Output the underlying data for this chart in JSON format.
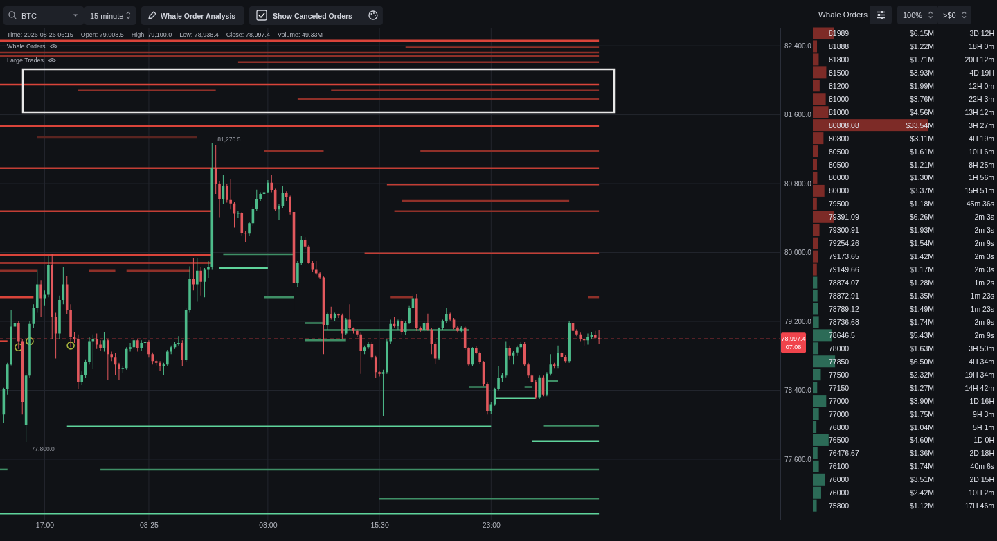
{
  "chart_data": [
    {
      "type": "candlestick",
      "x": [
        "2026-08-24T14:15",
        "2026-08-24T14:30",
        "2026-08-24T14:45",
        "2026-08-24T15:00",
        "2026-08-24T15:15",
        "2026-08-24T15:30",
        "2026-08-24T15:45",
        "2026-08-24T16:00",
        "2026-08-24T16:15",
        "2026-08-24T16:30",
        "2026-08-24T16:45",
        "2026-08-24T17:00",
        "2026-08-24T17:15",
        "2026-08-24T17:30",
        "2026-08-24T17:45",
        "2026-08-24T18:00",
        "2026-08-24T18:15",
        "2026-08-24T18:30",
        "2026-08-24T18:45",
        "2026-08-24T19:00",
        "2026-08-24T19:15",
        "2026-08-24T19:30",
        "2026-08-24T19:45",
        "2026-08-24T20:00",
        "2026-08-24T20:15",
        "2026-08-24T20:30",
        "2026-08-24T20:45",
        "2026-08-24T21:00",
        "2026-08-24T21:15",
        "2026-08-24T21:30",
        "2026-08-24T21:45",
        "2026-08-24T22:00",
        "2026-08-24T22:15",
        "2026-08-24T22:30",
        "2026-08-24T22:45",
        "2026-08-24T23:00",
        "2026-08-24T23:15",
        "2026-08-24T23:30",
        "2026-08-24T23:45",
        "2026-08-25T00:00",
        "2026-08-25T00:15",
        "2026-08-25T00:30",
        "2026-08-25T00:45",
        "2026-08-25T01:00",
        "2026-08-25T01:15",
        "2026-08-25T01:30",
        "2026-08-25T01:45",
        "2026-08-25T02:00",
        "2026-08-25T02:15",
        "2026-08-25T02:30",
        "2026-08-25T02:45",
        "2026-08-25T03:00",
        "2026-08-25T03:15",
        "2026-08-25T03:30",
        "2026-08-25T03:45",
        "2026-08-25T04:00",
        "2026-08-25T04:15",
        "2026-08-25T04:30",
        "2026-08-25T04:45",
        "2026-08-25T05:00",
        "2026-08-25T05:15",
        "2026-08-25T05:30",
        "2026-08-25T05:45",
        "2026-08-25T06:00",
        "2026-08-25T06:15",
        "2026-08-25T06:30",
        "2026-08-25T06:45",
        "2026-08-25T07:00",
        "2026-08-25T07:15",
        "2026-08-25T07:30",
        "2026-08-25T07:45",
        "2026-08-25T08:00",
        "2026-08-25T08:15",
        "2026-08-25T08:30",
        "2026-08-25T08:45",
        "2026-08-25T09:00",
        "2026-08-25T09:15",
        "2026-08-25T09:30",
        "2026-08-25T09:45",
        "2026-08-25T10:00",
        "2026-08-25T10:15",
        "2026-08-25T10:30",
        "2026-08-25T10:45",
        "2026-08-25T11:00",
        "2026-08-25T11:15",
        "2026-08-25T11:30",
        "2026-08-25T11:45",
        "2026-08-25T12:00",
        "2026-08-25T12:15",
        "2026-08-25T12:30",
        "2026-08-25T12:45",
        "2026-08-25T13:00",
        "2026-08-25T13:15",
        "2026-08-25T13:30",
        "2026-08-25T13:45",
        "2026-08-25T14:00",
        "2026-08-25T14:15",
        "2026-08-25T14:30",
        "2026-08-25T14:45",
        "2026-08-25T15:00",
        "2026-08-25T15:15",
        "2026-08-25T15:30",
        "2026-08-25T15:45",
        "2026-08-25T16:00",
        "2026-08-25T16:15",
        "2026-08-25T16:30",
        "2026-08-25T16:45",
        "2026-08-25T17:00",
        "2026-08-25T17:15",
        "2026-08-25T17:30",
        "2026-08-25T17:45",
        "2026-08-25T18:00",
        "2026-08-25T18:15",
        "2026-08-25T18:30",
        "2026-08-25T18:45",
        "2026-08-25T19:00",
        "2026-08-25T19:15",
        "2026-08-25T19:30",
        "2026-08-25T19:45",
        "2026-08-25T20:00",
        "2026-08-25T20:15",
        "2026-08-25T20:30",
        "2026-08-25T20:45",
        "2026-08-25T21:00",
        "2026-08-25T21:15",
        "2026-08-25T21:30",
        "2026-08-25T21:45",
        "2026-08-25T22:00",
        "2026-08-25T22:15",
        "2026-08-25T22:30",
        "2026-08-25T22:45",
        "2026-08-25T23:00",
        "2026-08-25T23:15",
        "2026-08-25T23:30",
        "2026-08-25T23:45",
        "2026-08-26T00:00",
        "2026-08-26T00:15",
        "2026-08-26T00:30",
        "2026-08-26T00:45",
        "2026-08-26T01:00",
        "2026-08-26T01:15",
        "2026-08-26T01:30",
        "2026-08-26T01:45",
        "2026-08-26T02:00",
        "2026-08-26T02:15",
        "2026-08-26T02:30",
        "2026-08-26T02:45",
        "2026-08-26T03:00",
        "2026-08-26T03:15",
        "2026-08-26T03:30",
        "2026-08-26T03:45",
        "2026-08-26T04:00",
        "2026-08-26T04:15",
        "2026-08-26T04:30",
        "2026-08-26T04:45",
        "2026-08-26T05:00",
        "2026-08-26T05:15",
        "2026-08-26T05:30",
        "2026-08-26T05:45",
        "2026-08-26T06:00",
        "2026-08-26T06:15"
      ],
      "ohlc": [
        [
          78120,
          78430,
          78020,
          78420
        ],
        [
          78420,
          78720,
          78350,
          78700
        ],
        [
          78700,
          79330,
          78690,
          79140
        ],
        [
          79140,
          79420,
          79100,
          79180
        ],
        [
          79180,
          79200,
          78880,
          78970
        ],
        [
          78970,
          78990,
          78120,
          78260
        ],
        [
          78000,
          78600,
          77800,
          78570
        ],
        [
          78570,
          79200,
          78540,
          79170
        ],
        [
          79170,
          79400,
          79120,
          79360
        ],
        [
          79360,
          79800,
          79300,
          79630
        ],
        [
          79630,
          79680,
          79250,
          79470
        ],
        [
          79470,
          79560,
          79380,
          79510
        ],
        [
          79510,
          79960,
          79480,
          79860
        ],
        [
          79860,
          79980,
          79000,
          79250
        ],
        [
          79250,
          79300,
          78770,
          79060
        ],
        [
          79060,
          79500,
          79000,
          79450
        ],
        [
          79450,
          79830,
          79400,
          79630
        ],
        [
          79630,
          79730,
          79280,
          79330
        ],
        [
          79330,
          79400,
          78900,
          79020
        ],
        [
          79020,
          79080,
          78950,
          78990
        ],
        [
          78990,
          79050,
          78420,
          78500
        ],
        [
          78500,
          78620,
          78460,
          78580
        ],
        [
          78580,
          78760,
          78540,
          78730
        ],
        [
          78730,
          79020,
          78700,
          78970
        ],
        [
          78970,
          79050,
          78650,
          78990
        ],
        [
          78990,
          79060,
          78880,
          78930
        ],
        [
          78930,
          78980,
          78860,
          78890
        ],
        [
          78890,
          79080,
          78850,
          78980
        ],
        [
          78980,
          79000,
          78520,
          78820
        ],
        [
          78820,
          78850,
          78740,
          78780
        ],
        [
          78780,
          78830,
          78580,
          78700
        ],
        [
          78700,
          78720,
          78520,
          78650
        ],
        [
          78650,
          78680,
          78600,
          78660
        ],
        [
          78660,
          78900,
          78640,
          78880
        ],
        [
          78880,
          78950,
          78850,
          78900
        ],
        [
          78900,
          79000,
          78880,
          78980
        ],
        [
          78980,
          79000,
          78850,
          78890
        ],
        [
          78890,
          78980,
          78860,
          78950
        ],
        [
          78950,
          79000,
          78900,
          78960
        ],
        [
          78960,
          78980,
          78780,
          78820
        ],
        [
          78820,
          78840,
          78700,
          78740
        ],
        [
          78740,
          78760,
          78690,
          78720
        ],
        [
          78720,
          78740,
          78630,
          78680
        ],
        [
          78680,
          78720,
          78580,
          78700
        ],
        [
          78700,
          78870,
          78680,
          78850
        ],
        [
          78850,
          78920,
          78820,
          78900
        ],
        [
          78900,
          78960,
          78880,
          78940
        ],
        [
          78940,
          79030,
          78920,
          78950
        ],
        [
          78950,
          78980,
          78680,
          78750
        ],
        [
          78750,
          79350,
          78730,
          79330
        ],
        [
          79330,
          79840,
          79300,
          79690
        ],
        [
          79690,
          79940,
          79560,
          79630
        ],
        [
          79630,
          79940,
          79430,
          79790
        ],
        [
          79790,
          79830,
          79500,
          79660
        ],
        [
          79660,
          79820,
          79480,
          79800
        ],
        [
          79800,
          79900,
          79700,
          79830
        ],
        [
          79830,
          81270.5,
          79800,
          80980
        ],
        [
          80980,
          81250,
          80680,
          80800
        ],
        [
          80800,
          80830,
          80410,
          80620
        ],
        [
          80620,
          80900,
          80560,
          80770
        ],
        [
          80770,
          80800,
          80580,
          80610
        ],
        [
          80610,
          80850,
          80500,
          80570
        ],
        [
          80570,
          80590,
          80290,
          80450
        ],
        [
          80450,
          80480,
          80400,
          80460
        ],
        [
          80460,
          80470,
          80200,
          80230
        ],
        [
          80230,
          80250,
          80120,
          80220
        ],
        [
          80220,
          80350,
          80190,
          80340
        ],
        [
          80340,
          80530,
          80310,
          80510
        ],
        [
          80510,
          80730,
          80480,
          80620
        ],
        [
          80620,
          80700,
          80600,
          80680
        ],
        [
          80680,
          80780,
          80650,
          80700
        ],
        [
          80700,
          80840,
          80690,
          80810
        ],
        [
          80810,
          80900,
          80700,
          80720
        ],
        [
          80720,
          80740,
          80480,
          80500
        ],
        [
          80500,
          80560,
          80380,
          80540
        ],
        [
          80540,
          80770,
          80520,
          80690
        ],
        [
          80690,
          80710,
          80600,
          80640
        ],
        [
          80640,
          80660,
          80440,
          80470
        ],
        [
          80470,
          80500,
          79290,
          79650
        ],
        [
          79650,
          79900,
          79600,
          79880
        ],
        [
          79880,
          80190,
          79860,
          80150
        ],
        [
          80150,
          80180,
          80040,
          80070
        ],
        [
          80070,
          80090,
          79870,
          79880
        ],
        [
          79880,
          79900,
          79780,
          79800
        ],
        [
          79800,
          79900,
          79740,
          79760
        ],
        [
          79760,
          79780,
          79690,
          79710
        ],
        [
          79710,
          79720,
          78820,
          79160
        ],
        [
          79160,
          79300,
          79100,
          79280
        ],
        [
          79280,
          79370,
          79220,
          79240
        ],
        [
          79240,
          79300,
          79200,
          79280
        ],
        [
          79280,
          79290,
          79240,
          79270
        ],
        [
          79270,
          79290,
          79000,
          79060
        ],
        [
          79060,
          79240,
          79040,
          79220
        ],
        [
          79220,
          79400,
          79100,
          79120
        ],
        [
          79120,
          79130,
          79060,
          79090
        ],
        [
          79090,
          79110,
          79020,
          79050
        ],
        [
          79050,
          79070,
          78590,
          78860
        ],
        [
          78860,
          78920,
          78820,
          78900
        ],
        [
          78900,
          78960,
          78880,
          78940
        ],
        [
          78940,
          78960,
          78760,
          78780
        ],
        [
          78780,
          78800,
          78540,
          78610
        ],
        [
          78610,
          78620,
          78560,
          78590
        ],
        [
          78590,
          78640,
          78100,
          78610
        ],
        [
          78610,
          78990,
          78590,
          78970
        ],
        [
          78970,
          79220,
          78940,
          79170
        ],
        [
          79170,
          79250,
          79130,
          79150
        ],
        [
          79150,
          79220,
          79100,
          79200
        ],
        [
          79200,
          79230,
          79050,
          79080
        ],
        [
          79080,
          79200,
          79040,
          79180
        ],
        [
          79180,
          79380,
          79170,
          79360
        ],
        [
          79360,
          79520,
          79340,
          79470
        ],
        [
          79470,
          79520,
          79090,
          79120
        ],
        [
          79120,
          79140,
          79080,
          79100
        ],
        [
          79100,
          79200,
          79080,
          79180
        ],
        [
          79180,
          79290,
          79090,
          79100
        ],
        [
          79100,
          79120,
          78820,
          78940
        ],
        [
          78940,
          78960,
          78710,
          78770
        ],
        [
          78770,
          79130,
          78750,
          79120
        ],
        [
          79120,
          79220,
          79100,
          79200
        ],
        [
          79200,
          79360,
          79180,
          79280
        ],
        [
          79280,
          79300,
          79200,
          79220
        ],
        [
          79220,
          79240,
          79110,
          79130
        ],
        [
          79130,
          79150,
          79070,
          79090
        ],
        [
          79090,
          79150,
          79070,
          79130
        ],
        [
          79130,
          79150,
          78870,
          78890
        ],
        [
          78890,
          78900,
          78680,
          78700
        ],
        [
          78700,
          78900,
          78680,
          78890
        ],
        [
          78890,
          78910,
          78820,
          78830
        ],
        [
          78830,
          78850,
          78710,
          78730
        ],
        [
          78730,
          78740,
          78450,
          78470
        ],
        [
          78470,
          78490,
          78120,
          78160
        ],
        [
          78160,
          78260,
          78130,
          78240
        ],
        [
          78240,
          78430,
          78220,
          78420
        ],
        [
          78420,
          78680,
          78400,
          78540
        ],
        [
          78540,
          78600,
          78500,
          78570
        ],
        [
          78570,
          78970,
          78550,
          78890
        ],
        [
          78890,
          78920,
          78760,
          78800
        ],
        [
          78800,
          78860,
          78700,
          78840
        ],
        [
          78840,
          78920,
          78800,
          78900
        ],
        [
          78900,
          78960,
          78880,
          78940
        ],
        [
          78940,
          78960,
          78680,
          78700
        ],
        [
          78700,
          78720,
          78540,
          78570
        ],
        [
          78570,
          78590,
          78480,
          78500
        ],
        [
          78500,
          78520,
          78300,
          78320
        ],
        [
          78320,
          78570,
          78300,
          78550
        ],
        [
          78550,
          78570,
          78330,
          78350
        ],
        [
          78350,
          78610,
          78330,
          78590
        ],
        [
          78590,
          78820,
          78570,
          78700
        ],
        [
          78700,
          78720,
          78660,
          78680
        ],
        [
          78680,
          78920,
          78660,
          78830
        ],
        [
          78830,
          78850,
          78770,
          78790
        ],
        [
          78790,
          78810,
          78720,
          78740
        ],
        [
          78740,
          79200,
          78720,
          79180
        ],
        [
          79180,
          79200,
          79070,
          79090
        ],
        [
          79090,
          79110,
          79030,
          79050
        ],
        [
          79050,
          79070,
          78970,
          79000
        ],
        [
          79000,
          79010,
          78920,
          78980
        ],
        [
          78980,
          79060,
          78930,
          79020
        ],
        [
          79020,
          79080,
          79000,
          79040
        ],
        [
          79040,
          79090,
          78990,
          79008.5
        ],
        [
          79008.5,
          79100,
          78938.4,
          78997.4
        ]
      ],
      "colors": [
        "#4dbb8a",
        "#4dbb8a",
        "#4dbb8a",
        "#4dbb8a",
        "#e2585d",
        "#e2585d",
        "#4dbb8a",
        "#4dbb8a",
        "#4dbb8a",
        "#4dbb8a",
        "#e2585d",
        "#4dbb8a",
        "#4dbb8a",
        "#e2585d",
        "#e2585d",
        "#4dbb8a",
        "#4dbb8a",
        "#e2585d",
        "#e2585d",
        "#e2585d",
        "#e2585d",
        "#4dbb8a",
        "#4dbb8a",
        "#4dbb8a",
        "#4dbb8a",
        "#e2585d",
        "#e2585d",
        "#4dbb8a",
        "#e2585d",
        "#e2585d",
        "#e2585d",
        "#e2585d",
        "#4dbb8a",
        "#4dbb8a",
        "#4dbb8a",
        "#4dbb8a",
        "#e2585d",
        "#4dbb8a",
        "#4dbb8a",
        "#e2585d",
        "#e2585d",
        "#e2585d",
        "#e2585d",
        "#4dbb8a",
        "#4dbb8a",
        "#4dbb8a",
        "#4dbb8a",
        "#4dbb8a",
        "#e2585d",
        "#4dbb8a",
        "#4dbb8a",
        "#e2585d",
        "#4dbb8a",
        "#e2585d",
        "#4dbb8a",
        "#4dbb8a",
        "#4dbb8a",
        "#e2585d",
        "#e2585d",
        "#4dbb8a",
        "#e2585d",
        "#e2585d",
        "#e2585d",
        "#4dbb8a",
        "#e2585d",
        "#e2585d",
        "#4dbb8a",
        "#4dbb8a",
        "#4dbb8a",
        "#4dbb8a",
        "#4dbb8a",
        "#4dbb8a",
        "#e2585d",
        "#e2585d",
        "#4dbb8a",
        "#4dbb8a",
        "#e2585d",
        "#e2585d",
        "#e2585d",
        "#4dbb8a",
        "#4dbb8a",
        "#e2585d",
        "#e2585d",
        "#e2585d",
        "#e2585d",
        "#e2585d",
        "#e2585d",
        "#4dbb8a",
        "#e2585d",
        "#4dbb8a",
        "#e2585d",
        "#e2585d",
        "#4dbb8a",
        "#e2585d",
        "#e2585d",
        "#e2585d",
        "#e2585d",
        "#4dbb8a",
        "#4dbb8a",
        "#e2585d",
        "#e2585d",
        "#e2585d",
        "#4dbb8a",
        "#4dbb8a",
        "#4dbb8a",
        "#e2585d",
        "#4dbb8a",
        "#e2585d",
        "#4dbb8a",
        "#4dbb8a",
        "#4dbb8a",
        "#e2585d",
        "#e2585d",
        "#4dbb8a",
        "#e2585d",
        "#e2585d",
        "#e2585d",
        "#4dbb8a",
        "#4dbb8a",
        "#4dbb8a",
        "#e2585d",
        "#e2585d",
        "#e2585d",
        "#4dbb8a",
        "#e2585d",
        "#e2585d",
        "#4dbb8a",
        "#e2585d",
        "#e2585d",
        "#e2585d",
        "#e2585d",
        "#4dbb8a",
        "#4dbb8a",
        "#4dbb8a",
        "#4dbb8a",
        "#4dbb8a",
        "#e2585d",
        "#4dbb8a",
        "#4dbb8a",
        "#4dbb8a",
        "#e2585d",
        "#e2585d",
        "#e2585d",
        "#e2585d",
        "#4dbb8a",
        "#e2585d",
        "#4dbb8a",
        "#4dbb8a",
        "#e2585d",
        "#4dbb8a",
        "#e2585d",
        "#e2585d",
        "#4dbb8a",
        "#e2585d",
        "#e2585d",
        "#e2585d",
        "#e2585d",
        "#4dbb8a",
        "#4dbb8a",
        "#e2585d",
        "#e2585d"
      ],
      "xlim": [
        "2026-08-24T14:00",
        "2026-08-26T18:26"
      ],
      "ylim": [
        76900,
        82610
      ],
      "xticks": [
        {
          "value": "2026-08-24T17:00",
          "label": "17:00"
        },
        {
          "value": "2026-08-25T00:00",
          "label": "08-25"
        },
        {
          "value": "2026-08-25T08:00",
          "label": "08:00"
        },
        {
          "value": "2026-08-25T15:30",
          "label": "15:30"
        },
        {
          "value": "2026-08-25T23:00",
          "label": "23:00"
        }
      ],
      "yticks": [
        {
          "value": 77600,
          "label": "77,600.0"
        },
        {
          "value": 78400,
          "label": "78,400.0"
        },
        {
          "value": 79200,
          "label": "79,200.0"
        },
        {
          "value": 80000,
          "label": "80,000.0"
        },
        {
          "value": 80800,
          "label": "80,800.0"
        },
        {
          "value": 81600,
          "label": "81,600.0"
        },
        {
          "value": 82400,
          "label": "82,400.0"
        }
      ],
      "grid": true,
      "series": [
        {
          "type": "line",
          "x": [
            "2026-08-24T14:00",
            "2026-08-26T06:15"
          ],
          "values": [
            82460,
            82460
          ],
          "color": "#d9443a"
        },
        {
          "type": "line",
          "x": [
            "2026-08-25T17:15",
            "2026-08-26T06:15"
          ],
          "values": [
            82380,
            82380
          ],
          "color": "#8f3029"
        },
        {
          "type": "line",
          "x": [
            "2026-08-24T14:00",
            "2026-08-26T06:15"
          ],
          "values": [
            82320,
            82320
          ],
          "color": "#8f3029"
        },
        {
          "type": "line",
          "x": [
            "2026-08-24T14:00",
            "2026-08-26T06:15"
          ],
          "values": [
            82280,
            82280
          ],
          "color": "#8f3029"
        },
        {
          "type": "line",
          "x": [
            "2026-08-25T06:00",
            "2026-08-26T06:15"
          ],
          "values": [
            82210,
            82210
          ],
          "color": "#8f3029"
        },
        {
          "type": "line",
          "x": [
            "2026-08-24T14:00",
            "2026-08-26T06:15"
          ],
          "values": [
            81950,
            81950
          ],
          "color": "#d9443a"
        },
        {
          "type": "line",
          "x": [
            "2026-08-24T19:15",
            "2026-08-25T04:30"
          ],
          "values": [
            81880,
            81880
          ],
          "color": "#8f3029"
        },
        {
          "type": "line",
          "x": [
            "2026-08-25T12:15",
            "2026-08-26T06:15"
          ],
          "values": [
            81880,
            81880
          ],
          "color": "#8f3029"
        },
        {
          "type": "line",
          "x": [
            "2026-08-25T10:00",
            "2026-08-26T06:15"
          ],
          "values": [
            81780,
            81780
          ],
          "color": "#8f3029"
        },
        {
          "type": "line",
          "x": [
            "2026-08-24T14:00",
            "2026-08-26T06:15"
          ],
          "values": [
            81470,
            81470
          ],
          "color": "#d9443a"
        },
        {
          "type": "line",
          "x": [
            "2026-08-24T16:30",
            "2026-08-25T03:15"
          ],
          "values": [
            81340,
            81340
          ],
          "color": "#5a2420"
        },
        {
          "type": "line",
          "x": [
            "2026-08-25T07:45",
            "2026-08-25T11:45"
          ],
          "values": [
            81180,
            81180
          ],
          "color": "#8f3029"
        },
        {
          "type": "line",
          "x": [
            "2026-08-25T18:15",
            "2026-08-26T06:15"
          ],
          "values": [
            81180,
            81180
          ],
          "color": "#8f3029"
        },
        {
          "type": "line",
          "x": [
            "2026-08-24T14:00",
            "2026-08-26T06:15"
          ],
          "values": [
            80980,
            80980
          ],
          "color": "#c23e35"
        },
        {
          "type": "line",
          "x": [
            "2026-08-25T16:00",
            "2026-08-26T06:15"
          ],
          "values": [
            80790,
            80790
          ],
          "color": "#c23e35"
        },
        {
          "type": "line",
          "x": [
            "2026-08-25T17:00",
            "2026-08-26T04:15"
          ],
          "values": [
            80600,
            80600
          ],
          "color": "#8f3029"
        },
        {
          "type": "line",
          "x": [
            "2026-08-24T14:00",
            "2026-08-25T04:15"
          ],
          "values": [
            80480,
            80480
          ],
          "color": "#c23e35"
        },
        {
          "type": "line",
          "x": [
            "2026-08-25T16:30",
            "2026-08-26T06:15"
          ],
          "values": [
            80480,
            80480
          ],
          "color": "#8f3029"
        },
        {
          "type": "line",
          "x": [
            "2026-08-25T14:30",
            "2026-08-26T06:15"
          ],
          "values": [
            79990,
            79990
          ],
          "color": "#c23e35"
        },
        {
          "type": "line",
          "x": [
            "2026-08-24T14:00",
            "2026-08-25T04:15"
          ],
          "values": [
            79970,
            79970
          ],
          "color": "#d9443a"
        },
        {
          "type": "line",
          "x": [
            "2026-08-24T14:00",
            "2026-08-25T04:15"
          ],
          "values": [
            79880,
            79880
          ],
          "color": "#c23e35"
        },
        {
          "type": "line",
          "x": [
            "2026-08-24T14:00",
            "2026-08-24T16:30"
          ],
          "values": [
            79790,
            79790
          ],
          "color": "#8f3029"
        },
        {
          "type": "line",
          "x": [
            "2026-08-24T20:00",
            "2026-08-24T21:45"
          ],
          "values": [
            79790,
            79790
          ],
          "color": "#8f3029"
        },
        {
          "type": "line",
          "x": [
            "2026-08-24T22:30",
            "2026-08-25T02:45"
          ],
          "values": [
            79790,
            79790
          ],
          "color": "#8f3029"
        },
        {
          "type": "line",
          "x": [
            "2026-08-24T14:00",
            "2026-08-24T16:15"
          ],
          "values": [
            79480,
            79480
          ],
          "color": "#d9443a"
        },
        {
          "type": "line",
          "x": [
            "2026-08-25T16:15",
            "2026-08-25T17:45"
          ],
          "values": [
            79480,
            79480
          ],
          "color": "#8f3029"
        },
        {
          "type": "line",
          "x": [
            "2026-08-26T05:30",
            "2026-08-26T06:15"
          ],
          "values": [
            79480,
            79480
          ],
          "color": "#8f3029"
        },
        {
          "type": "line",
          "x": [
            "2026-08-24T14:00",
            "2026-08-24T14:30"
          ],
          "values": [
            78970,
            78970
          ],
          "color": "#d9443a"
        },
        {
          "type": "line",
          "x": [
            "2026-08-25T05:00",
            "2026-08-25T09:45"
          ],
          "values": [
            79980,
            79980
          ],
          "color": "#3f8f66"
        },
        {
          "type": "line",
          "x": [
            "2026-08-25T04:45",
            "2026-08-25T08:00"
          ],
          "values": [
            79820,
            79820
          ],
          "color": "#5fd39b"
        },
        {
          "type": "line",
          "x": [
            "2026-08-25T07:45",
            "2026-08-25T09:45"
          ],
          "values": [
            79480,
            79480
          ],
          "color": "#3f8f66"
        },
        {
          "type": "line",
          "x": [
            "2026-08-25T10:30",
            "2026-08-25T11:45"
          ],
          "values": [
            79180,
            79180
          ],
          "color": "#3f8f66"
        },
        {
          "type": "line",
          "x": [
            "2026-08-25T10:30",
            "2026-08-25T13:15"
          ],
          "values": [
            78980,
            78980
          ],
          "color": "#3f8f66"
        },
        {
          "type": "line",
          "x": [
            "2026-08-25T11:45",
            "2026-08-25T21:30"
          ],
          "values": [
            79100,
            79100
          ],
          "color": "#3f8f66"
        },
        {
          "type": "line",
          "x": [
            "2026-08-25T21:30",
            "2026-08-25T22:45"
          ],
          "values": [
            78440,
            78440
          ],
          "color": "#3f8f66"
        },
        {
          "type": "line",
          "x": [
            "2026-08-26T01:15",
            "2026-08-26T01:45"
          ],
          "values": [
            78440,
            78440
          ],
          "color": "#3f8f66"
        },
        {
          "type": "line",
          "x": [
            "2026-08-26T02:45",
            "2026-08-26T03:30"
          ],
          "values": [
            78510,
            78510
          ],
          "color": "#3f8f66"
        },
        {
          "type": "line",
          "x": [
            "2026-08-25T23:15",
            "2026-08-26T02:00"
          ],
          "values": [
            78310,
            78310
          ],
          "color": "#5fd39b"
        },
        {
          "type": "line",
          "x": [
            "2026-08-24T18:30",
            "2026-08-25T23:00"
          ],
          "values": [
            77980,
            77980
          ],
          "color": "#5fd39b"
        },
        {
          "type": "line",
          "x": [
            "2026-08-26T02:30",
            "2026-08-26T06:15"
          ],
          "values": [
            77990,
            77990
          ],
          "color": "#3f8f66"
        },
        {
          "type": "line",
          "x": [
            "2026-08-26T01:45",
            "2026-08-26T06:15"
          ],
          "values": [
            77810,
            77810
          ],
          "color": "#5fd39b"
        },
        {
          "type": "line",
          "x": [
            "2026-08-24T14:00",
            "2026-08-24T14:30"
          ],
          "values": [
            77480,
            77480
          ],
          "color": "#3f8f66"
        },
        {
          "type": "line",
          "x": [
            "2026-08-24T20:45",
            "2026-08-26T06:15"
          ],
          "values": [
            77480,
            77480
          ],
          "color": "#3f8f66"
        },
        {
          "type": "line",
          "x": [
            "2026-08-25T15:30",
            "2026-08-26T06:15"
          ],
          "values": [
            77140,
            77140
          ],
          "color": "#3f8f66"
        },
        {
          "type": "line",
          "x": [
            "2026-08-24T14:00",
            "2026-08-26T06:15"
          ],
          "values": [
            76970,
            76970
          ],
          "color": "#5fd39b"
        },
        {
          "type": "scatter",
          "x": [
            "2026-08-24T15:15",
            "2026-08-24T16:00",
            "2026-08-24T18:45"
          ],
          "values": [
            78900,
            78970,
            78920
          ],
          "color": "#a9b53c",
          "marker": "circle"
        }
      ],
      "ref_lines": [
        {
          "axis": "y",
          "value": 78997.4,
          "label": "78,997.4",
          "color": "#f0444c",
          "line_style": "dashed"
        }
      ],
      "annotations": [
        "BTC",
        "15 minute",
        "Whale Order Analysis",
        "Show Canceled Orders",
        "Time: 2026-08-26 06:15",
        "Open: 79,008.5",
        "High: 79,100.0",
        "Low: 78,938.4",
        "Close: 78,997.4",
        "Volume: 49.33M",
        "Whale Orders",
        "Large Trades",
        {
          "text": "81,270.5",
          "x": "2026-08-25T04:15",
          "y": 81270.5
        },
        {
          "text": "77,800.0",
          "x": "2026-08-24T15:45",
          "y": 77800
        },
        "07:08"
      ]
    },
    {
      "type": "bar",
      "orientation": "horizontal",
      "title": "Whale Orders",
      "categories": [
        "81989",
        "81888",
        "81800",
        "81500",
        "81200",
        "81000",
        "81000",
        "80808.08",
        "80800",
        "80500",
        "80500",
        "80000",
        "80000",
        "79500",
        "79391.09",
        "79300.91",
        "79254.26",
        "79173.65",
        "79149.66",
        "78874.07",
        "78872.91",
        "78789.12",
        "78736.68",
        "78646.5",
        "78000",
        "77850",
        "77500",
        "77150",
        "77000",
        "77000",
        "76800",
        "76500",
        "76476.67",
        "76100",
        "76000",
        "76000",
        "75800"
      ],
      "values": [
        6.15,
        1.22,
        1.71,
        3.93,
        1.99,
        3.76,
        4.56,
        33.54,
        3.11,
        1.61,
        1.21,
        1.3,
        3.37,
        1.18,
        6.26,
        1.93,
        1.54,
        1.42,
        1.17,
        1.28,
        1.35,
        1.49,
        1.74,
        5.43,
        1.63,
        6.5,
        2.32,
        1.27,
        3.9,
        1.75,
        1.04,
        4.6,
        1.36,
        1.74,
        3.51,
        2.42,
        1.12
      ],
      "value_labels": [
        "$6.15M",
        "$1.22M",
        "$1.71M",
        "$3.93M",
        "$1.99M",
        "$3.76M",
        "$4.56M",
        "$33.54M",
        "$3.11M",
        "$1.61M",
        "$1.21M",
        "$1.30M",
        "$3.37M",
        "$1.18M",
        "$6.26M",
        "$1.93M",
        "$1.54M",
        "$1.42M",
        "$1.17M",
        "$1.28M",
        "$1.35M",
        "$1.49M",
        "$1.74M",
        "$5.43M",
        "$1.63M",
        "$6.50M",
        "$2.32M",
        "$1.27M",
        "$3.90M",
        "$1.75M",
        "$1.04M",
        "$4.60M",
        "$1.36M",
        "$1.74M",
        "$3.51M",
        "$2.42M",
        "$1.12M"
      ],
      "colors": [
        "#7d2b27",
        "#7d2b27",
        "#7d2b27",
        "#7d2b27",
        "#7d2b27",
        "#7d2b27",
        "#7d2b27",
        "#7d2b27",
        "#7d2b27",
        "#7d2b27",
        "#7d2b27",
        "#7d2b27",
        "#7d2b27",
        "#7d2b27",
        "#7d2b27",
        "#7d2b27",
        "#7d2b27",
        "#7d2b27",
        "#7d2b27",
        "#2c6b57",
        "#2c6b57",
        "#2c6b57",
        "#2c6b57",
        "#2c6b57",
        "#2c6b57",
        "#2c6b57",
        "#2c6b57",
        "#2c6b57",
        "#2c6b57",
        "#2c6b57",
        "#2c6b57",
        "#2c6b57",
        "#2c6b57",
        "#2c6b57",
        "#2c6b57",
        "#2c6b57",
        "#2c6b57"
      ],
      "tick_labels": "y",
      "annotations": [
        "100%",
        ">$0",
        "3D 12H",
        "18H 0m",
        "20H 12m",
        "4D 19H",
        "12H 0m",
        "22H 3m",
        "13H 12m",
        "3H 27m",
        "4H 19m",
        "10H 6m",
        "8H 25m",
        "1H 56m",
        "15H 51m",
        "45m 36s",
        "2m 3s",
        "2m 3s",
        "2m 9s",
        "2m 3s",
        "2m 3s",
        "1m 2s",
        "1m 23s",
        "1m 23s",
        "2m 9s",
        "2m 9s",
        "3H 50m",
        "4H 34m",
        "19H 34m",
        "14H 42m",
        "1D 16H",
        "9H 3m",
        "5H 1m",
        "1D 0H",
        "2D 18H",
        "40m 6s",
        "2D 15H",
        "10H 2m",
        "17H 46m"
      ]
    }
  ]
}
